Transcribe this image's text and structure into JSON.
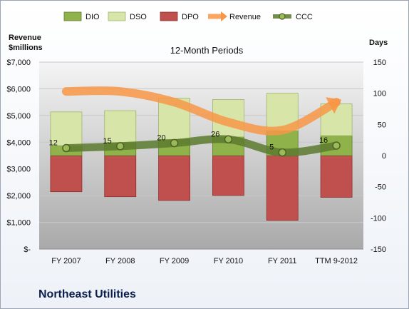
{
  "chart_data": {
    "type": "bar",
    "title": "12-Month Periods",
    "subtitle_left_axis": [
      "Revenue",
      "$millions"
    ],
    "right_axis_title": "Days",
    "categories": [
      "FY 2007",
      "FY 2008",
      "FY 2009",
      "FY 2010",
      "FY 2011",
      "TTM 9-2012"
    ],
    "left_axis": {
      "min": 0,
      "max": 7000,
      "ticks": [
        0,
        1000,
        2000,
        3000,
        4000,
        5000,
        6000,
        7000
      ],
      "tick_labels": [
        "$-",
        "$1,000",
        "$2,000",
        "$3,000",
        "$4,000",
        "$5,000",
        "$6,000",
        "$7,000"
      ]
    },
    "right_axis": {
      "min": -150,
      "max": 150,
      "ticks": [
        -150,
        -100,
        -50,
        0,
        50,
        100,
        150
      ],
      "tick_labels": [
        "-150",
        "-100",
        "-50",
        "0",
        "50",
        "100",
        "150"
      ]
    },
    "series": [
      {
        "name": "DIO",
        "axis": "right",
        "kind": "stacked-positive",
        "values": [
          16,
          21,
          26,
          30,
          40,
          32
        ],
        "color": "#8fb24a"
      },
      {
        "name": "DSO",
        "axis": "right",
        "kind": "stacked-positive",
        "values": [
          54,
          51,
          66,
          60,
          60,
          51
        ],
        "color": "#d7e6a8"
      },
      {
        "name": "DPO",
        "axis": "right",
        "kind": "negative",
        "values": [
          -58,
          -66,
          -72,
          -64,
          -104,
          -67
        ],
        "color": "#c0504d"
      },
      {
        "name": "Revenue",
        "axis": "left",
        "kind": "line",
        "values": [
          5900,
          5900,
          5500,
          4750,
          4450,
          5500
        ],
        "color": "#f79646"
      },
      {
        "name": "CCC",
        "axis": "right",
        "kind": "line",
        "values": [
          12,
          15,
          20,
          26,
          5,
          16
        ],
        "color": "#5c7a2e",
        "labels": [
          "12",
          "15",
          "20",
          "26",
          "5",
          "16"
        ]
      }
    ],
    "legend": {
      "position": "top",
      "items": [
        "DIO",
        "DSO",
        "DPO",
        "Revenue",
        "CCC"
      ]
    }
  },
  "footer": {
    "company": "Northeast Utilities"
  }
}
